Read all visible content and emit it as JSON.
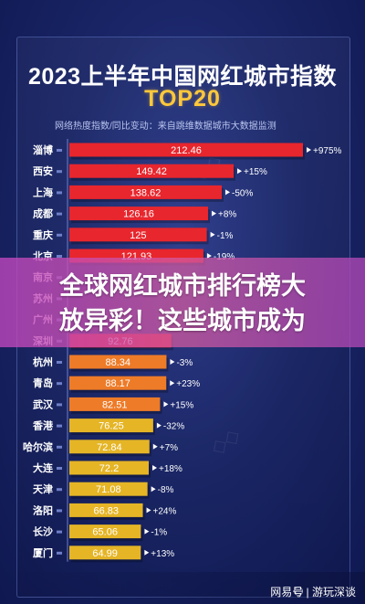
{
  "chart_data": {
    "type": "bar",
    "orientation": "horizontal",
    "title": "2023上半年中国网红城市指数",
    "subtitle": "TOP20",
    "note": "网络热度指数/同比变动：来自跳维数据城市大数据监测",
    "categories": [
      "淄博",
      "西安",
      "上海",
      "成都",
      "重庆",
      "北京",
      "南京",
      "苏州",
      "广州",
      "深圳",
      "杭州",
      "青岛",
      "武汉",
      "香港",
      "哈尔滨",
      "大连",
      "天津",
      "洛阳",
      "长沙",
      "厦门"
    ],
    "values": [
      212.46,
      149.42,
      138.62,
      126.16,
      125,
      121.93,
      null,
      null,
      null,
      92.76,
      88.34,
      88.17,
      82.51,
      76.25,
      72.84,
      72.2,
      71.08,
      66.83,
      65.06,
      64.99
    ],
    "value_labels": [
      "212.46",
      "149.42",
      "138.62",
      "126.16",
      "125",
      "121.93",
      "",
      "",
      "",
      "92.76",
      "88.34",
      "88.17",
      "82.51",
      "76.25",
      "72.84",
      "72.2",
      "71.08",
      "66.83",
      "65.06",
      "64.99"
    ],
    "changes": [
      "+975%",
      "+15%",
      "-50%",
      "+8%",
      "-1%",
      "-19%",
      "",
      "",
      "",
      "",
      "-3%",
      "+23%",
      "+15%",
      "-32%",
      "+7%",
      "+18%",
      "-8%",
      "+24%",
      "-1%",
      "+13%"
    ],
    "colors": {
      "red": "#e8262d",
      "orange": "#ee7b28",
      "yellow": "#e5b526"
    }
  },
  "overlay": {
    "line1": "全球网红城市排行榜大",
    "line2": "放异彩！这些城市成为"
  },
  "footer": {
    "source": "网易号 | 游玩深谈"
  }
}
